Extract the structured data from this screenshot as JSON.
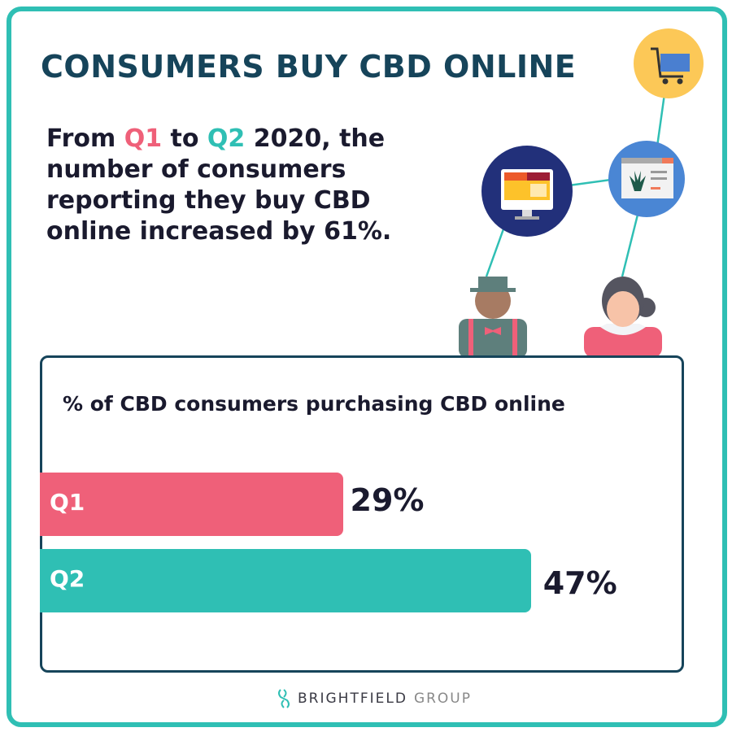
{
  "title": "CONSUMERS BUY CBD ONLINE",
  "lead": {
    "part1": "From ",
    "q1": "Q1",
    "part2": " to ",
    "q2": "Q2",
    "part3": " 2020, the number of consumers reporting they buy CBD online increased by 61%."
  },
  "illustration_icons": [
    "shopping-cart-icon",
    "computer-monitor-icon",
    "cbd-web-page-icon",
    "man-avatar-icon",
    "woman-avatar-icon"
  ],
  "colors": {
    "frame": "#2fbfb4",
    "title": "#16445a",
    "q1": "#ef6079",
    "q2": "#2fbfb4"
  },
  "chart_data": {
    "type": "bar",
    "orientation": "horizontal",
    "title": "% of CBD consumers purchasing CBD online",
    "categories": [
      "Q1",
      "Q2"
    ],
    "values": [
      29,
      47
    ],
    "value_labels": [
      "29%",
      "47%"
    ],
    "colors": [
      "#ef6079",
      "#2fbfb4"
    ],
    "xlim": [
      0,
      61.5
    ],
    "grid": false
  },
  "logo": {
    "brand": "BRIGHTFIELD",
    "suffix": "GROUP"
  }
}
